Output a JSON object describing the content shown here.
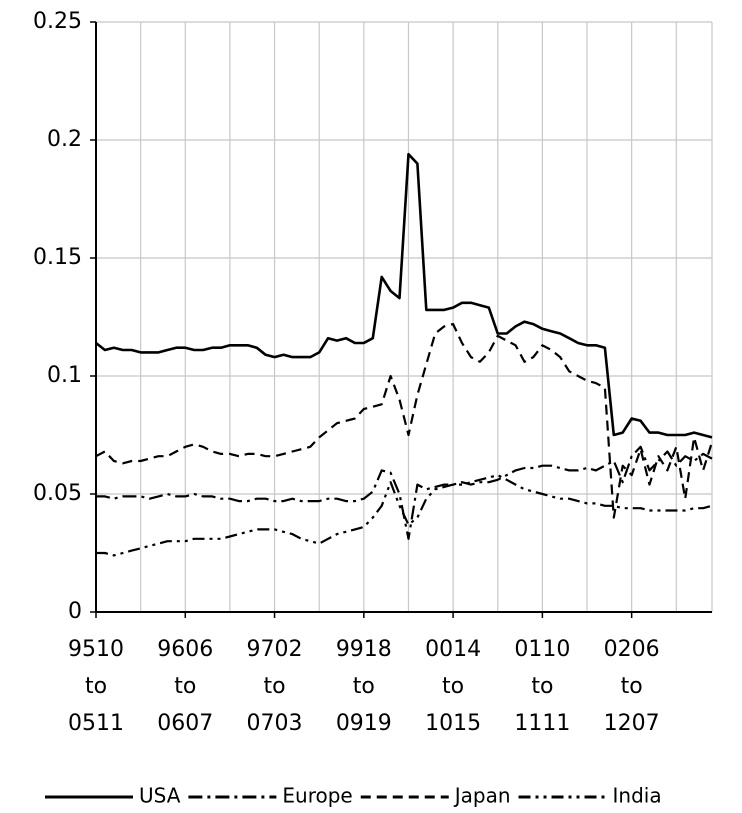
{
  "chart_data": {
    "type": "line",
    "categories": [
      "9510 to 0511",
      null,
      null,
      null,
      null,
      null,
      null,
      null,
      null,
      null,
      "9606 to 0607",
      null,
      null,
      null,
      null,
      null,
      null,
      null,
      null,
      null,
      "9702 to 0703",
      null,
      null,
      null,
      null,
      null,
      null,
      null,
      null,
      null,
      "9918 to 0919",
      null,
      null,
      null,
      null,
      null,
      null,
      null,
      null,
      null,
      "0014 to 1015",
      null,
      null,
      null,
      null,
      null,
      null,
      null,
      null,
      null,
      "0110 to 1111",
      null,
      null,
      null,
      null,
      null,
      null,
      null,
      null,
      null,
      "0206 to 1207",
      null,
      null,
      null,
      null,
      null,
      null,
      null,
      null,
      null
    ],
    "series": [
      {
        "name": "USA",
        "color": "#000000",
        "dash": "solid",
        "values": [
          0.114,
          0.111,
          0.112,
          0.111,
          0.111,
          0.11,
          0.11,
          0.11,
          0.111,
          0.112,
          0.112,
          0.111,
          0.111,
          0.112,
          0.112,
          0.113,
          0.113,
          0.113,
          0.112,
          0.109,
          0.108,
          0.109,
          0.108,
          0.108,
          0.108,
          0.11,
          0.116,
          0.115,
          0.116,
          0.114,
          0.114,
          0.116,
          0.142,
          0.136,
          0.133,
          0.194,
          0.19,
          0.128,
          0.128,
          0.128,
          0.129,
          0.131,
          0.131,
          0.13,
          0.129,
          0.118,
          0.118,
          0.121,
          0.123,
          0.122,
          0.12,
          0.119,
          0.118,
          0.116,
          0.114,
          0.113,
          0.113,
          0.112,
          0.075,
          0.076,
          0.082,
          0.081,
          0.076,
          0.076,
          0.075,
          0.075,
          0.075,
          0.076,
          0.075,
          0.074
        ]
      },
      {
        "name": "Europe",
        "color": "#000000",
        "dash": "dash-dot",
        "values": [
          0.049,
          0.049,
          0.048,
          0.049,
          0.049,
          0.049,
          0.048,
          0.049,
          0.05,
          0.049,
          0.049,
          0.05,
          0.049,
          0.049,
          0.048,
          0.048,
          0.047,
          0.047,
          0.048,
          0.048,
          0.047,
          0.047,
          0.048,
          0.047,
          0.047,
          0.047,
          0.048,
          0.048,
          0.047,
          0.047,
          0.048,
          0.051,
          0.06,
          0.059,
          0.05,
          0.031,
          0.054,
          0.052,
          0.053,
          0.054,
          0.054,
          0.055,
          0.054,
          0.055,
          0.055,
          0.056,
          0.058,
          0.06,
          0.061,
          0.061,
          0.062,
          0.062,
          0.061,
          0.06,
          0.06,
          0.061,
          0.06,
          0.062,
          0.064,
          0.055,
          0.066,
          0.07,
          0.06,
          0.064,
          0.068,
          0.062,
          0.066,
          0.064,
          0.067,
          0.065
        ]
      },
      {
        "name": "Japan",
        "color": "#000000",
        "dash": "dash",
        "values": [
          0.066,
          0.068,
          0.064,
          0.063,
          0.064,
          0.064,
          0.065,
          0.066,
          0.066,
          0.068,
          0.07,
          0.071,
          0.07,
          0.068,
          0.067,
          0.067,
          0.066,
          0.067,
          0.067,
          0.066,
          0.066,
          0.067,
          0.068,
          0.069,
          0.07,
          0.074,
          0.077,
          0.08,
          0.081,
          0.082,
          0.086,
          0.087,
          0.088,
          0.1,
          0.09,
          0.075,
          0.092,
          0.105,
          0.118,
          0.121,
          0.122,
          0.114,
          0.108,
          0.106,
          0.11,
          0.117,
          0.115,
          0.113,
          0.106,
          0.108,
          0.113,
          0.111,
          0.108,
          0.102,
          0.1,
          0.098,
          0.097,
          0.095,
          0.04,
          0.062,
          0.058,
          0.069,
          0.054,
          0.066,
          0.06,
          0.07,
          0.048,
          0.074,
          0.06,
          0.072
        ]
      },
      {
        "name": "India",
        "color": "#000000",
        "dash": "dash-dot-dot",
        "values": [
          0.025,
          0.025,
          0.024,
          0.025,
          0.026,
          0.027,
          0.028,
          0.029,
          0.03,
          0.03,
          0.03,
          0.031,
          0.031,
          0.031,
          0.031,
          0.032,
          0.033,
          0.034,
          0.035,
          0.035,
          0.035,
          0.034,
          0.033,
          0.031,
          0.03,
          0.029,
          0.031,
          0.033,
          0.034,
          0.035,
          0.036,
          0.04,
          0.045,
          0.055,
          0.045,
          0.037,
          0.04,
          0.048,
          0.052,
          0.053,
          0.054,
          0.054,
          0.055,
          0.056,
          0.057,
          0.058,
          0.056,
          0.054,
          0.052,
          0.051,
          0.05,
          0.049,
          0.048,
          0.048,
          0.047,
          0.046,
          0.046,
          0.045,
          0.045,
          0.044,
          0.044,
          0.044,
          0.043,
          0.043,
          0.043,
          0.043,
          0.043,
          0.044,
          0.044,
          0.045
        ]
      }
    ],
    "ylim": [
      0,
      0.25
    ],
    "yticks": [
      0,
      0.05,
      0.1,
      0.15,
      0.2,
      0.25
    ],
    "grid": true,
    "legend": "bottom"
  }
}
